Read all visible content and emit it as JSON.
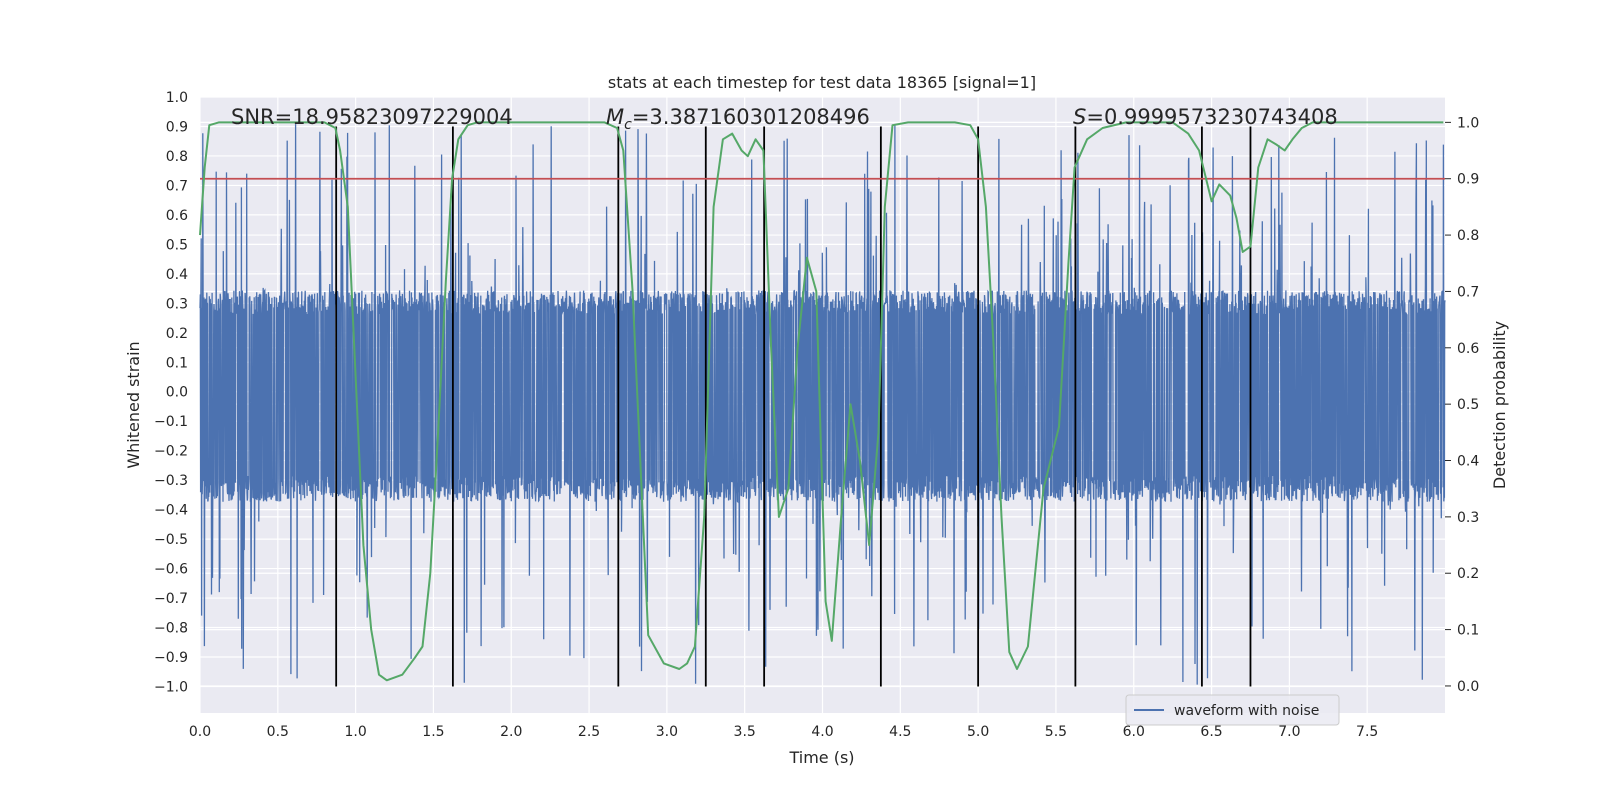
{
  "chart_data": {
    "type": "line",
    "title": "stats at each timestep for test data 18365 [signal=1]",
    "xlabel": "Time (s)",
    "ylabel_left": "Whitened strain",
    "ylabel_right": "Detection probability",
    "xlim": [
      0,
      8
    ],
    "ylim_left": [
      -1.09,
      1.0
    ],
    "ylim_right": [
      -0.048,
      1.045
    ],
    "x_ticks": [
      "0.0",
      "0.5",
      "1.0",
      "1.5",
      "2.0",
      "2.5",
      "3.0",
      "3.5",
      "4.0",
      "4.5",
      "5.0",
      "5.5",
      "6.0",
      "6.5",
      "7.0",
      "7.5"
    ],
    "y_left_ticks": [
      "1.0",
      "0.9",
      "0.8",
      "0.7",
      "0.6",
      "0.5",
      "0.4",
      "0.3",
      "0.2",
      "0.1",
      "0.0",
      "−0.1",
      "−0.2",
      "−0.3",
      "−0.4",
      "−0.5",
      "−0.6",
      "−0.7",
      "−0.8",
      "−0.9",
      "−1.0"
    ],
    "y_right_ticks": [
      "0.0",
      "0.1",
      "0.2",
      "0.3",
      "0.4",
      "0.5",
      "0.6",
      "0.7",
      "0.8",
      "0.9",
      "1.0"
    ],
    "grid": true,
    "legend_position": "lower-right",
    "annotations": {
      "snr": "SNR=18.95823097229004",
      "mc_symbol": "M",
      "mc_sub": "c",
      "mc_value": "=3.387160301208496",
      "s_symbol": "S",
      "s_value": "=0.9999573230743408"
    },
    "threshold": 0.9,
    "boundaries_x": [
      0.875,
      1.625,
      2.688,
      3.25,
      3.625,
      4.375,
      5.0,
      5.625,
      6.438,
      6.75
    ],
    "boundary_ylim_left": [
      -1.0,
      0.9
    ],
    "series": [
      {
        "name": "waveform with noise",
        "axis": "left",
        "color": "#4c72b0",
        "envelope": {
          "positive_typical": 0.35,
          "negative_typical": -0.38,
          "max": 0.91,
          "min": -1.0
        }
      },
      {
        "axis": "right",
        "color": "#55a868",
        "x": [
          0.0,
          0.03,
          0.06,
          0.12,
          0.25,
          0.4,
          0.6,
          0.8,
          0.87,
          0.9,
          0.95,
          1.0,
          1.05,
          1.1,
          1.15,
          1.2,
          1.3,
          1.38,
          1.43,
          1.48,
          1.53,
          1.58,
          1.62,
          1.66,
          1.72,
          1.78,
          1.85,
          2.0,
          2.3,
          2.6,
          2.68,
          2.72,
          2.78,
          2.88,
          2.98,
          3.08,
          3.13,
          3.18,
          3.24,
          3.3,
          3.36,
          3.42,
          3.48,
          3.52,
          3.57,
          3.62,
          3.67,
          3.72,
          3.78,
          3.84,
          3.9,
          3.96,
          4.02,
          4.06,
          4.12,
          4.18,
          4.24,
          4.3,
          4.36,
          4.4,
          4.45,
          4.55,
          4.75,
          4.85,
          4.95,
          5.0,
          5.05,
          5.1,
          5.15,
          5.2,
          5.25,
          5.32,
          5.42,
          5.52,
          5.58,
          5.62,
          5.7,
          5.8,
          5.95,
          6.1,
          6.25,
          6.35,
          6.42,
          6.5,
          6.55,
          6.62,
          6.66,
          6.7,
          6.75,
          6.8,
          6.86,
          6.92,
          6.97,
          7.02,
          7.08,
          7.15,
          7.25,
          7.4,
          7.6,
          7.8,
          7.99
        ],
        "y": [
          0.8,
          0.92,
          0.995,
          1.0,
          1.0,
          1.0,
          1.0,
          1.0,
          0.99,
          0.95,
          0.85,
          0.55,
          0.25,
          0.1,
          0.02,
          0.01,
          0.02,
          0.05,
          0.07,
          0.2,
          0.45,
          0.72,
          0.9,
          0.97,
          0.995,
          1.0,
          1.0,
          1.0,
          1.0,
          1.0,
          0.99,
          0.95,
          0.7,
          0.09,
          0.04,
          0.03,
          0.04,
          0.07,
          0.3,
          0.85,
          0.97,
          0.98,
          0.95,
          0.94,
          0.97,
          0.95,
          0.6,
          0.3,
          0.35,
          0.6,
          0.76,
          0.7,
          0.15,
          0.08,
          0.3,
          0.5,
          0.4,
          0.25,
          0.45,
          0.85,
          0.995,
          1.0,
          1.0,
          1.0,
          0.995,
          0.97,
          0.85,
          0.6,
          0.3,
          0.06,
          0.03,
          0.07,
          0.35,
          0.46,
          0.75,
          0.92,
          0.97,
          0.99,
          1.0,
          1.0,
          1.0,
          0.98,
          0.95,
          0.86,
          0.89,
          0.87,
          0.83,
          0.77,
          0.78,
          0.92,
          0.97,
          0.96,
          0.95,
          0.97,
          0.99,
          1.0,
          1.0,
          1.0,
          1.0,
          1.0,
          1.0
        ]
      },
      {
        "axis": "right",
        "color": "#c44e52",
        "kind": "hline",
        "value": 0.9
      }
    ]
  }
}
